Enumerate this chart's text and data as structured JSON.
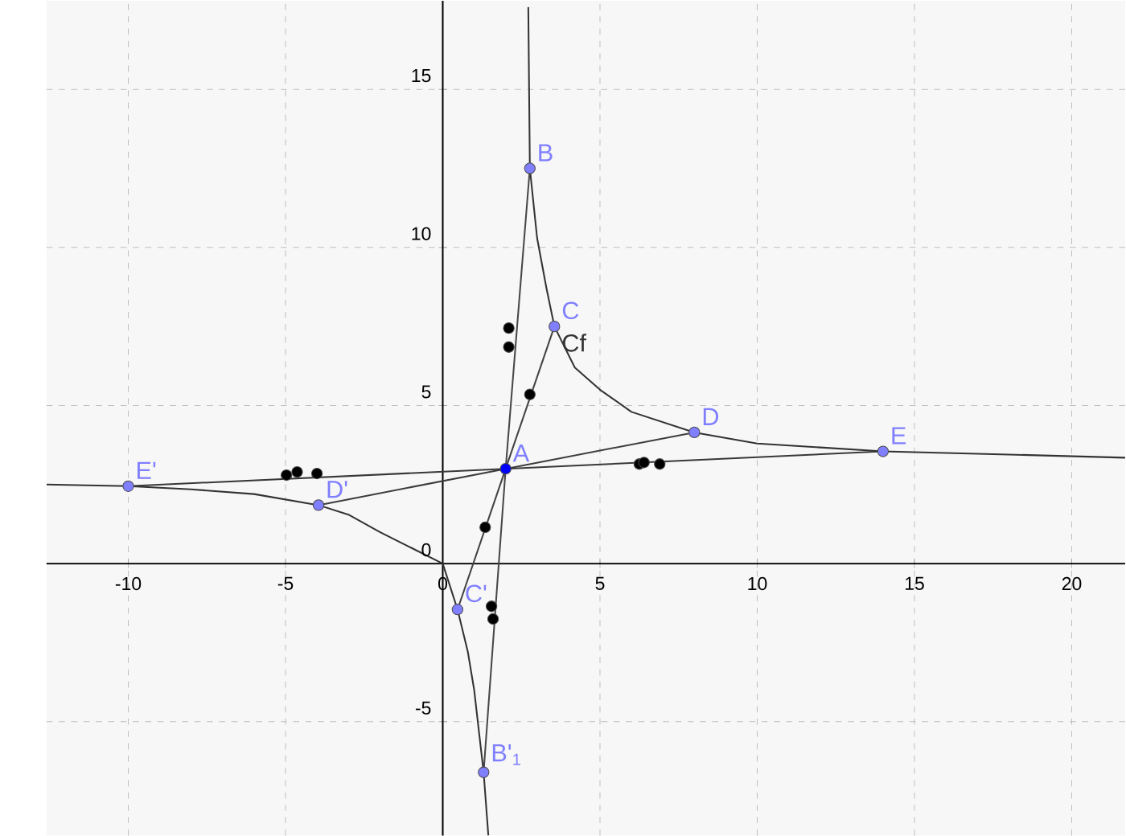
{
  "chart_data": {
    "type": "line",
    "xlim": [
      -12.6,
      21.7
    ],
    "ylim": [
      -8.6,
      17.8
    ],
    "xticks": [
      -10,
      -5,
      0,
      5,
      10,
      15,
      20
    ],
    "yticks": [
      -5,
      0,
      5,
      10,
      15
    ],
    "grid": true,
    "marker": "none",
    "series": [
      {
        "name": "Cf",
        "color": "#333333",
        "x": [
          -12.6,
          -10,
          -8,
          -6,
          -3.95,
          -3,
          -2,
          -1,
          0,
          0.47,
          0.8,
          1.0,
          1.3,
          1.45,
          null,
          2.72,
          2.77,
          3.0,
          3.3,
          3.55,
          4.2,
          5,
          6,
          8,
          10,
          14,
          18,
          21.7
        ],
        "values": [
          2.5,
          2.45,
          2.35,
          2.2,
          1.85,
          1.55,
          1.0,
          0.5,
          0.0,
          -1.45,
          -2.8,
          -4.0,
          -6.6,
          -8.6,
          null,
          17.6,
          12.5,
          10.3,
          8.7,
          7.5,
          6.2,
          5.5,
          4.8,
          4.15,
          3.8,
          3.55,
          3.45,
          3.35
        ]
      },
      {
        "color": "#383838",
        "x": [
          -10,
          2.0,
          14.0
        ],
        "values": [
          2.45,
          3.0,
          3.55
        ]
      },
      {
        "color": "#3d3d3d",
        "x": [
          -3.95,
          2.0,
          8.0
        ],
        "values": [
          1.85,
          3.0,
          4.15
        ]
      },
      {
        "color": "#424242",
        "x": [
          0.47,
          2.0,
          3.55
        ],
        "values": [
          -1.45,
          3.0,
          7.5
        ]
      },
      {
        "color": "#474747",
        "x": [
          1.3,
          2.0,
          2.77
        ],
        "values": [
          -6.6,
          3.0,
          12.5
        ]
      },
      {
        "type": "scatter",
        "marker": "circle",
        "color": "#000000",
        "x": [
          2.1,
          2.1,
          2.77,
          1.35,
          1.55,
          1.6,
          -4.97,
          -4.63,
          -4.0,
          6.25,
          6.4,
          6.9
        ],
        "values": [
          7.45,
          6.85,
          5.35,
          1.15,
          -1.35,
          -1.75,
          2.8,
          2.9,
          2.85,
          3.15,
          3.2,
          3.15
        ]
      },
      {
        "type": "scatter",
        "marker": "circle",
        "color": "#7f7fff",
        "x": [
          2.77,
          3.55,
          8.0,
          14.0,
          -10,
          -3.95,
          0.47,
          1.3
        ],
        "values": [
          12.5,
          7.5,
          4.15,
          3.55,
          2.45,
          1.85,
          -1.45,
          -6.6
        ]
      },
      {
        "type": "scatter",
        "marker": "circle",
        "color": "#0000ff",
        "x": [
          2.0
        ],
        "values": [
          3.0
        ]
      }
    ],
    "annotations": [
      {
        "text": "A",
        "x": 2.0,
        "y": 3.0
      },
      {
        "text": "B",
        "x": 2.77,
        "y": 12.5
      },
      {
        "text": "C",
        "x": 3.55,
        "y": 7.5
      },
      {
        "text": "D",
        "x": 8.0,
        "y": 4.15
      },
      {
        "text": "E",
        "x": 14.0,
        "y": 3.55
      },
      {
        "text": "E'",
        "x": -10,
        "y": 2.45
      },
      {
        "text": "D'",
        "x": -3.95,
        "y": 1.85
      },
      {
        "text": "C'",
        "x": 0.47,
        "y": -1.45
      },
      {
        "text": "B'$_{1}$",
        "x": 1.3,
        "y": -6.6
      }
    ]
  }
}
